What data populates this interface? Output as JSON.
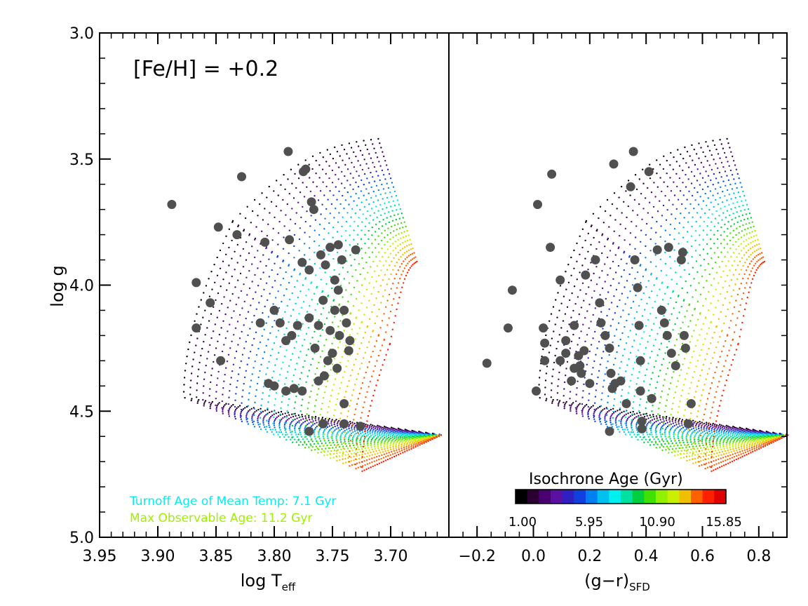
{
  "chart_data": {
    "type": "scatter",
    "annotation": "[Fe/H] = +0.2",
    "ylabel": "log g",
    "ylim": [
      5.0,
      3.0
    ],
    "yticks": [
      "3.0",
      "3.5",
      "4.0",
      "4.5",
      "5.0"
    ],
    "colorbar": {
      "title": "Isochrone Age (Gyr)",
      "min": 1.0,
      "max": 15.85,
      "tick_labels": [
        "1.00",
        "5.95",
        "10.90",
        "15.85"
      ],
      "colors": [
        "#000000",
        "#2a0030",
        "#4a0070",
        "#5a10a0",
        "#3020c0",
        "#1040e0",
        "#0080f0",
        "#00c0f0",
        "#00f0f0",
        "#00e0a0",
        "#00d040",
        "#40e000",
        "#90f000",
        "#c8f000",
        "#f0c000",
        "#ff6000",
        "#ff2000",
        "#e00000"
      ]
    },
    "isochrone_ages": [
      1.0,
      1.5,
      2.0,
      2.5,
      3.0,
      3.5,
      4.0,
      4.5,
      5.0,
      5.5,
      6.0,
      6.5,
      7.0,
      7.5,
      8.0,
      8.5,
      9.0,
      9.5,
      10.0,
      10.5,
      11.0,
      11.5,
      12.0,
      12.5,
      13.0,
      13.5,
      14.0,
      14.5,
      15.0
    ],
    "panels": [
      {
        "xlabel_main": "log T",
        "xlabel_sub": "eff",
        "xlim": [
          3.95,
          3.65
        ],
        "xticks": [
          "3.95",
          "3.90",
          "3.85",
          "3.80",
          "3.75",
          "3.70"
        ],
        "legend_lines": [
          {
            "text": "Turnoff Age of Mean Temp: 7.1 Gyr",
            "color": "#00f0f0"
          },
          {
            "text": "Max Observable Age: 11.2 Gyr",
            "color": "#a0f000"
          }
        ],
        "stars": [
          {
            "x": 3.888,
            "y": 3.68
          },
          {
            "x": 3.828,
            "y": 3.57
          },
          {
            "x": 3.788,
            "y": 3.47
          },
          {
            "x": 3.775,
            "y": 3.55
          },
          {
            "x": 3.773,
            "y": 3.54
          },
          {
            "x": 3.768,
            "y": 3.67
          },
          {
            "x": 3.766,
            "y": 3.7
          },
          {
            "x": 3.848,
            "y": 3.77
          },
          {
            "x": 3.832,
            "y": 3.8
          },
          {
            "x": 3.808,
            "y": 3.83
          },
          {
            "x": 3.787,
            "y": 3.82
          },
          {
            "x": 3.76,
            "y": 3.88
          },
          {
            "x": 3.752,
            "y": 3.85
          },
          {
            "x": 3.745,
            "y": 3.84
          },
          {
            "x": 3.776,
            "y": 3.91
          },
          {
            "x": 3.77,
            "y": 3.94
          },
          {
            "x": 3.756,
            "y": 3.92
          },
          {
            "x": 3.748,
            "y": 3.98
          },
          {
            "x": 3.742,
            "y": 3.9
          },
          {
            "x": 3.73,
            "y": 3.86
          },
          {
            "x": 3.745,
            "y": 4.02
          },
          {
            "x": 3.758,
            "y": 4.06
          },
          {
            "x": 3.748,
            "y": 4.1
          },
          {
            "x": 3.74,
            "y": 4.1
          },
          {
            "x": 3.738,
            "y": 4.15
          },
          {
            "x": 3.762,
            "y": 4.16
          },
          {
            "x": 3.78,
            "y": 4.16
          },
          {
            "x": 3.795,
            "y": 4.15
          },
          {
            "x": 3.8,
            "y": 4.1
          },
          {
            "x": 3.77,
            "y": 4.13
          },
          {
            "x": 3.752,
            "y": 4.18
          },
          {
            "x": 3.744,
            "y": 4.2
          },
          {
            "x": 3.735,
            "y": 4.22
          },
          {
            "x": 3.736,
            "y": 4.26
          },
          {
            "x": 3.75,
            "y": 4.27
          },
          {
            "x": 3.765,
            "y": 4.25
          },
          {
            "x": 3.785,
            "y": 4.2
          },
          {
            "x": 3.79,
            "y": 4.22
          },
          {
            "x": 3.754,
            "y": 4.3
          },
          {
            "x": 3.746,
            "y": 4.33
          },
          {
            "x": 3.762,
            "y": 4.38
          },
          {
            "x": 3.776,
            "y": 4.42
          },
          {
            "x": 3.783,
            "y": 4.41
          },
          {
            "x": 3.79,
            "y": 4.42
          },
          {
            "x": 3.8,
            "y": 4.4
          },
          {
            "x": 3.805,
            "y": 4.39
          },
          {
            "x": 3.867,
            "y": 3.99
          },
          {
            "x": 3.855,
            "y": 4.07
          },
          {
            "x": 3.867,
            "y": 4.17
          },
          {
            "x": 3.846,
            "y": 4.3
          },
          {
            "x": 3.812,
            "y": 4.15
          },
          {
            "x": 3.758,
            "y": 4.55
          },
          {
            "x": 3.77,
            "y": 4.58
          },
          {
            "x": 3.74,
            "y": 4.55
          },
          {
            "x": 3.726,
            "y": 4.56
          },
          {
            "x": 3.74,
            "y": 4.47
          },
          {
            "x": 3.757,
            "y": 4.36
          }
        ]
      },
      {
        "xlabel_main": "(g−r)",
        "xlabel_sub": "SFD",
        "xlim": [
          -0.3,
          0.9
        ],
        "xticks": [
          "−0.2",
          "0.0",
          "0.2",
          "0.4",
          "0.6",
          "0.8"
        ],
        "stars": [
          {
            "x": -0.165,
            "y": 4.31
          },
          {
            "x": -0.09,
            "y": 4.17
          },
          {
            "x": -0.075,
            "y": 4.02
          },
          {
            "x": 0.01,
            "y": 4.42
          },
          {
            "x": 0.035,
            "y": 4.17
          },
          {
            "x": 0.04,
            "y": 4.23
          },
          {
            "x": 0.04,
            "y": 4.3
          },
          {
            "x": 0.015,
            "y": 3.68
          },
          {
            "x": 0.065,
            "y": 3.56
          },
          {
            "x": 0.06,
            "y": 3.85
          },
          {
            "x": 0.095,
            "y": 4.3
          },
          {
            "x": 0.095,
            "y": 3.98
          },
          {
            "x": 0.115,
            "y": 4.27
          },
          {
            "x": 0.115,
            "y": 4.22
          },
          {
            "x": 0.135,
            "y": 4.38
          },
          {
            "x": 0.145,
            "y": 4.33
          },
          {
            "x": 0.145,
            "y": 4.16
          },
          {
            "x": 0.16,
            "y": 4.28
          },
          {
            "x": 0.165,
            "y": 4.32
          },
          {
            "x": 0.17,
            "y": 4.35
          },
          {
            "x": 0.18,
            "y": 4.26
          },
          {
            "x": 0.185,
            "y": 3.96
          },
          {
            "x": 0.2,
            "y": 4.39
          },
          {
            "x": 0.22,
            "y": 3.9
          },
          {
            "x": 0.235,
            "y": 4.07
          },
          {
            "x": 0.24,
            "y": 4.15
          },
          {
            "x": 0.255,
            "y": 4.2
          },
          {
            "x": 0.27,
            "y": 4.25
          },
          {
            "x": 0.275,
            "y": 4.35
          },
          {
            "x": 0.28,
            "y": 4.41
          },
          {
            "x": 0.29,
            "y": 4.39
          },
          {
            "x": 0.285,
            "y": 3.52
          },
          {
            "x": 0.31,
            "y": 4.38
          },
          {
            "x": 0.33,
            "y": 4.47
          },
          {
            "x": 0.345,
            "y": 3.61
          },
          {
            "x": 0.355,
            "y": 3.47
          },
          {
            "x": 0.36,
            "y": 3.9
          },
          {
            "x": 0.37,
            "y": 4.01
          },
          {
            "x": 0.375,
            "y": 4.16
          },
          {
            "x": 0.38,
            "y": 4.3
          },
          {
            "x": 0.38,
            "y": 4.42
          },
          {
            "x": 0.385,
            "y": 4.54
          },
          {
            "x": 0.385,
            "y": 4.57
          },
          {
            "x": 0.41,
            "y": 3.55
          },
          {
            "x": 0.42,
            "y": 4.45
          },
          {
            "x": 0.44,
            "y": 3.86
          },
          {
            "x": 0.455,
            "y": 4.1
          },
          {
            "x": 0.465,
            "y": 4.15
          },
          {
            "x": 0.475,
            "y": 4.2
          },
          {
            "x": 0.48,
            "y": 3.85
          },
          {
            "x": 0.49,
            "y": 4.27
          },
          {
            "x": 0.505,
            "y": 4.32
          },
          {
            "x": 0.525,
            "y": 3.9
          },
          {
            "x": 0.53,
            "y": 3.87
          },
          {
            "x": 0.535,
            "y": 4.2
          },
          {
            "x": 0.54,
            "y": 4.25
          },
          {
            "x": 0.55,
            "y": 4.55
          },
          {
            "x": 0.56,
            "y": 4.47
          },
          {
            "x": 0.27,
            "y": 4.58
          }
        ]
      }
    ]
  }
}
